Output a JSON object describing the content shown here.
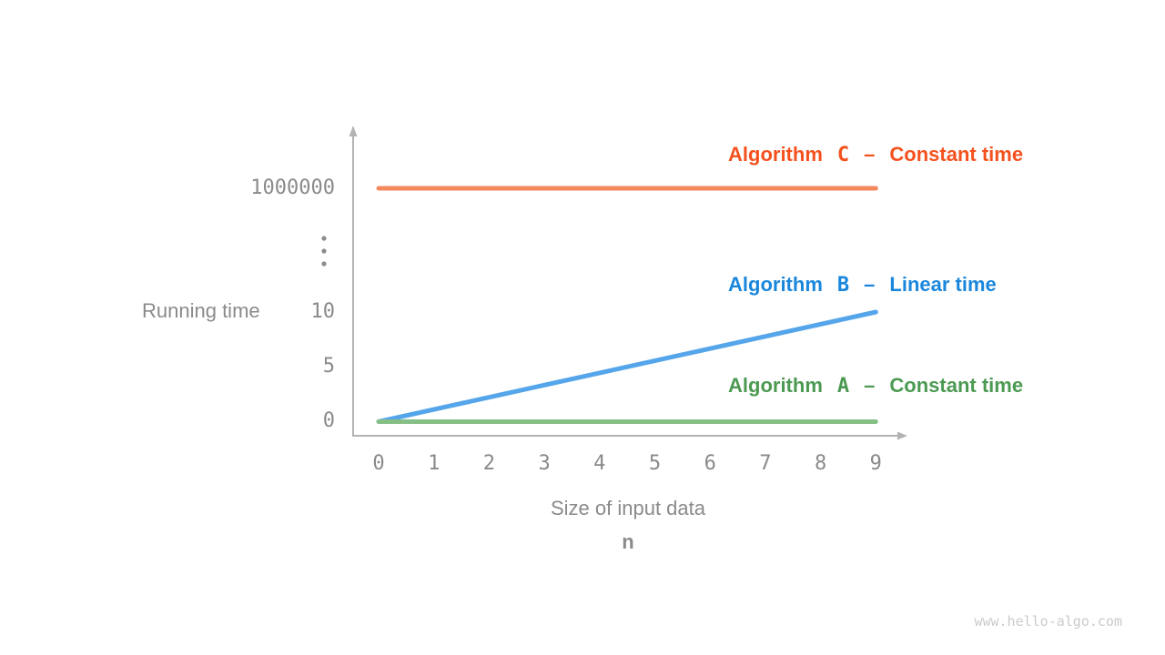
{
  "watermark": "www.hello-algo.com",
  "theme": {
    "axis_color": "#b3b3b3",
    "tick_text_color": "#8a8a8a",
    "axis_title_color": "#8a8a8a",
    "ellipsis_dot_color": "#8c8c8c",
    "watermark_color": "#cbcbcb",
    "background": "#ffffff"
  },
  "chart_data": {
    "type": "line",
    "title": "",
    "xlabel": "Size of input data",
    "x_variable": "n",
    "ylabel": "Running time",
    "x_ticks": [
      "0",
      "1",
      "2",
      "3",
      "4",
      "5",
      "6",
      "7",
      "8",
      "9"
    ],
    "y_ticks": [
      "1000000",
      "⋮",
      "10",
      "5",
      "0"
    ],
    "x_range": [
      0,
      9
    ],
    "y_axis_note": "broken y axis: 0, 5, 10, vertical ellipsis, then 1000000",
    "grid": false,
    "legend_position": "right, one colored label above each line",
    "series": [
      {
        "id": "algorithm-c",
        "name": "Algorithm C",
        "legend": {
          "prefix": "Algorithm",
          "letter": "C",
          "dash": "–",
          "description": "Constant time"
        },
        "kind": "constant",
        "value": 1000000,
        "x": [
          0,
          9
        ],
        "values": [
          1000000,
          1000000
        ],
        "line_color": "#f4885f",
        "label_color": "#f4511e"
      },
      {
        "id": "algorithm-b",
        "name": "Algorithm B",
        "legend": {
          "prefix": "Algorithm",
          "letter": "B",
          "dash": "–",
          "description": "Linear time"
        },
        "kind": "linear",
        "value": null,
        "x": [
          0,
          9
        ],
        "values": [
          0,
          10
        ],
        "line_color": "#55a5eb",
        "label_color": "#1a87dd"
      },
      {
        "id": "algorithm-a",
        "name": "Algorithm A",
        "legend": {
          "prefix": "Algorithm",
          "letter": "A",
          "dash": "–",
          "description": "Constant time"
        },
        "kind": "constant",
        "value": 0,
        "x": [
          0,
          9
        ],
        "values": [
          0,
          0
        ],
        "line_color": "#86bf86",
        "label_color": "#4c9a52"
      }
    ]
  }
}
